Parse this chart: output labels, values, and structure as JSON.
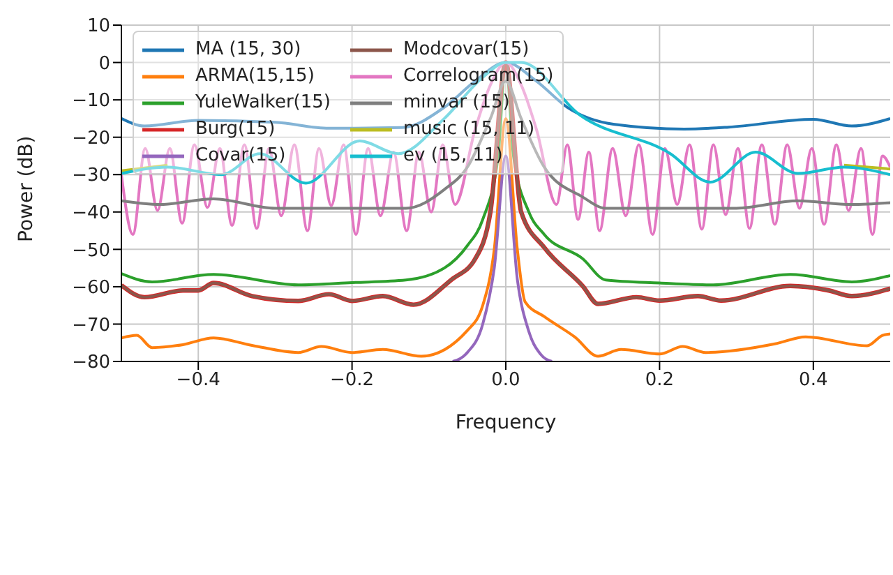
{
  "chart_data": {
    "type": "line",
    "xlabel": "Frequency",
    "ylabel": "Power (dB)",
    "xlim": [
      -0.5,
      0.5
    ],
    "ylim": [
      -80,
      10
    ],
    "xticks": [
      -0.4,
      -0.2,
      {
        "value": 0,
        "label": "0.0"
      },
      0.2,
      0.4
    ],
    "yticks": [
      -80,
      -70,
      -60,
      -50,
      -40,
      -30,
      -20,
      -10,
      0,
      10
    ],
    "grid": true,
    "legend": "top left",
    "series": [
      {
        "name": "MA (15, 30)",
        "color": "#1f77b4",
        "x": [
          -0.5,
          -0.47,
          -0.4,
          -0.3,
          -0.23,
          -0.135,
          -0.08,
          -0.04,
          0,
          0.04,
          0.08,
          0.14,
          0.232,
          0.29,
          0.4,
          0.45,
          0.5
        ],
        "values": [
          -15,
          -17,
          -15.5,
          -16,
          -17.6,
          -17.4,
          -12,
          -5,
          0,
          -5,
          -12,
          -16.5,
          -17.8,
          -17.3,
          -15.2,
          -17,
          -15
        ]
      },
      {
        "name": "ARMA(15,15)",
        "color": "#ff7f0e",
        "x": [
          -0.5,
          -0.48,
          -0.46,
          -0.42,
          -0.38,
          -0.33,
          -0.27,
          -0.24,
          -0.2,
          -0.16,
          -0.11,
          -0.05,
          -0.03,
          -0.015,
          0,
          0.015,
          0.025,
          0.05,
          0.09,
          0.12,
          0.15,
          0.2,
          0.23,
          0.26,
          0.35,
          0.39,
          0.47,
          0.49,
          0.5
        ],
        "values": [
          -73.7,
          -73,
          -76.3,
          -75.5,
          -73.7,
          -75.7,
          -77.6,
          -76,
          -77.6,
          -76.8,
          -78.6,
          -71.7,
          -65,
          -50,
          -15,
          -50,
          -64,
          -68,
          -73.5,
          -78.6,
          -76.8,
          -78,
          -76,
          -77.6,
          -75.3,
          -73.4,
          -75.8,
          -73,
          -72.6
        ]
      },
      {
        "name": "YuleWalker(15)",
        "color": "#2ca02c",
        "x": [
          -0.5,
          -0.46,
          -0.38,
          -0.27,
          -0.2,
          -0.13,
          -0.08,
          -0.05,
          -0.03,
          -0.01,
          0,
          0.01,
          0.03,
          0.05,
          0.1,
          0.13,
          0.2,
          0.27,
          0.37,
          0.45,
          0.5
        ],
        "values": [
          -56.5,
          -58.7,
          -56.7,
          -59.5,
          -58.9,
          -58.2,
          -55,
          -49,
          -42,
          -25,
          0,
          -25,
          -40,
          -46,
          -52.5,
          -58.2,
          -59,
          -59.5,
          -56.7,
          -58.7,
          -57
        ]
      },
      {
        "name": "Burg(15)",
        "color": "#d62728",
        "x": [
          -0.5,
          -0.47,
          -0.42,
          -0.4,
          -0.38,
          -0.33,
          -0.27,
          -0.23,
          -0.2,
          -0.16,
          -0.12,
          -0.07,
          -0.04,
          -0.02,
          0,
          0.02,
          0.05,
          0.1,
          0.12,
          0.17,
          0.2,
          0.25,
          0.28,
          0.37,
          0.42,
          0.45,
          0.5
        ],
        "values": [
          -59.6,
          -62.8,
          -61,
          -61,
          -59,
          -62.5,
          -63.8,
          -62,
          -63.8,
          -62.5,
          -64.8,
          -58,
          -52.6,
          -40,
          0,
          -40,
          -49.5,
          -59.8,
          -64.6,
          -62.8,
          -63.7,
          -62.5,
          -63.7,
          -59.8,
          -61,
          -62.5,
          -60.5
        ]
      },
      {
        "name": "Covar(15)",
        "color": "#9467bd",
        "x": [
          -0.069,
          -0.05,
          -0.03,
          -0.015,
          0,
          0.015,
          0.03,
          0.045,
          0.06
        ],
        "values": [
          -80,
          -77.6,
          -70,
          -55,
          -25,
          -58,
          -72,
          -78,
          -80
        ]
      },
      {
        "name": "Modcovar(15)",
        "color": "#8c564b",
        "x": [
          -0.5,
          -0.47,
          -0.42,
          -0.4,
          -0.38,
          -0.33,
          -0.27,
          -0.23,
          -0.2,
          -0.16,
          -0.12,
          -0.07,
          -0.04,
          -0.02,
          0,
          0.02,
          0.05,
          0.1,
          0.12,
          0.17,
          0.2,
          0.25,
          0.28,
          0.37,
          0.42,
          0.45,
          0.5
        ],
        "values": [
          -59.6,
          -62.8,
          -61,
          -61,
          -59,
          -62.5,
          -63.8,
          -62,
          -63.8,
          -62.5,
          -64.8,
          -58,
          -52.6,
          -40,
          0,
          -40,
          -49.5,
          -59.8,
          -64.6,
          -62.8,
          -63.7,
          -62.5,
          -63.7,
          -59.8,
          -61,
          -62.5,
          -60.5
        ]
      },
      {
        "name": "Correlogram(15)",
        "color": "#e377c2",
        "x": [
          -0.5,
          -0.485,
          -0.469,
          -0.453,
          -0.437,
          -0.421,
          -0.405,
          -0.388,
          -0.372,
          -0.356,
          -0.34,
          -0.324,
          -0.308,
          -0.292,
          -0.275,
          -0.258,
          -0.243,
          -0.227,
          -0.211,
          -0.195,
          -0.179,
          -0.163,
          -0.146,
          -0.129,
          -0.113,
          -0.097,
          -0.082,
          -0.066,
          -0.04,
          -0.02,
          0,
          0.02,
          0.04,
          0.066,
          0.08,
          0.094,
          0.108,
          0.122,
          0.139,
          0.156,
          0.173,
          0.191,
          0.207,
          0.223,
          0.239,
          0.255,
          0.27,
          0.286,
          0.302,
          0.317,
          0.333,
          0.35,
          0.366,
          0.382,
          0.398,
          0.414,
          0.43,
          0.446,
          0.462,
          0.477,
          0.49,
          0.5
        ],
        "values": [
          -30,
          -46,
          -23,
          -39.6,
          -23,
          -43,
          -22,
          -38.8,
          -23,
          -43.6,
          -22,
          -44.4,
          -23,
          -41,
          -22,
          -45,
          -23,
          -38.3,
          -22,
          -46,
          -23,
          -41,
          -24,
          -45,
          -24,
          -40,
          -22,
          -38,
          -18,
          -6,
          0,
          -6,
          -18,
          -38,
          -22,
          -42,
          -24,
          -45,
          -23,
          -41,
          -22,
          -46,
          -23,
          -38,
          -22,
          -44.6,
          -22,
          -40.7,
          -23,
          -44.4,
          -22,
          -43.3,
          -22,
          -39,
          -23,
          -43.3,
          -22,
          -39.6,
          -23,
          -46,
          -25,
          -28
        ]
      },
      {
        "name": "minvar (15)",
        "color": "#7f7f7f",
        "x": [
          -0.5,
          -0.45,
          -0.38,
          -0.3,
          -0.2,
          -0.13,
          -0.08,
          -0.05,
          -0.02,
          0,
          0.02,
          0.05,
          0.1,
          0.13,
          0.2,
          0.3,
          0.38,
          0.45,
          0.5
        ],
        "values": [
          -37,
          -38,
          -36.5,
          -39,
          -39,
          -39,
          -34,
          -28,
          -15,
          -5,
          -15,
          -28,
          -36,
          -39,
          -39,
          -39,
          -37,
          -38,
          -37.5
        ]
      },
      {
        "name": "music (15, 11)",
        "color": "#bcbd22",
        "x": [
          -0.5,
          -0.44,
          -0.37,
          -0.32,
          -0.26,
          -0.19,
          -0.14,
          -0.08,
          -0.03,
          0,
          0.02,
          0.096,
          0.214,
          0.266,
          0.325,
          0.38,
          0.44,
          0.5
        ],
        "values": [
          -29,
          -27.5,
          null,
          null,
          null,
          null,
          null,
          null,
          null,
          null,
          null,
          null,
          null,
          null,
          null,
          null,
          -27.5,
          -28.5
        ]
      },
      {
        "name": "ev (15, 11)",
        "color": "#17becf",
        "x": [
          -0.5,
          -0.44,
          -0.37,
          -0.32,
          -0.26,
          -0.19,
          -0.14,
          -0.08,
          -0.03,
          0,
          0.02,
          0.096,
          0.214,
          0.266,
          0.325,
          0.38,
          0.44,
          0.5
        ],
        "values": [
          -29.7,
          -28,
          -30,
          -24.4,
          -32.3,
          -21,
          -24.4,
          -15,
          -4,
          0,
          0,
          -14,
          -24.4,
          -32,
          -24,
          -29.7,
          -28,
          -30
        ]
      }
    ]
  }
}
